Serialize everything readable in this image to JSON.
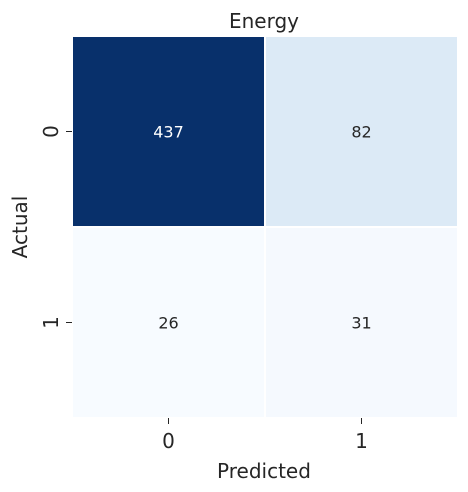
{
  "chart_data": {
    "type": "heatmap",
    "title": "Energy",
    "xlabel": "Predicted",
    "ylabel": "Actual",
    "x_categories": [
      "0",
      "1"
    ],
    "y_categories": [
      "0",
      "1"
    ],
    "values": [
      [
        437,
        82
      ],
      [
        26,
        31
      ]
    ],
    "colormap": "Blues",
    "colorbar": false,
    "grid": false
  }
}
